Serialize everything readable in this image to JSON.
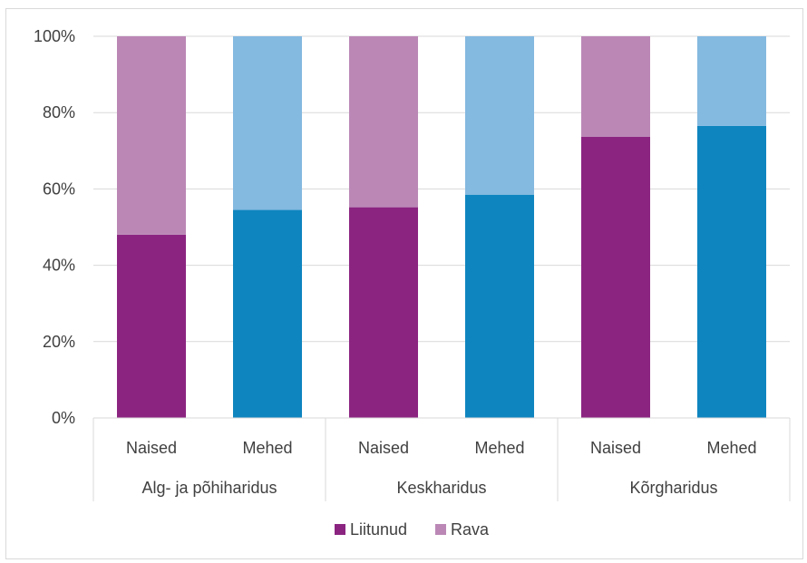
{
  "chart_data": {
    "type": "bar",
    "stacked": true,
    "percent_stacked": true,
    "ylim": [
      0,
      100
    ],
    "y_ticks": [
      "0%",
      "20%",
      "40%",
      "60%",
      "80%",
      "100%"
    ],
    "y_tick_values": [
      0,
      20,
      40,
      60,
      80,
      100
    ],
    "grid": true,
    "legend_position": "bottom",
    "bars": [
      {
        "label": "Naised",
        "group": "Alg- ja põhiharidus",
        "liitunud": 48,
        "rava": 52,
        "color_main": "#8b2481",
        "color_light": "#bb88b6"
      },
      {
        "label": "Mehed",
        "group": "Alg- ja põhiharidus",
        "liitunud": 54.5,
        "rava": 45.5,
        "color_main": "#0e85bf",
        "color_light": "#84b9e0"
      },
      {
        "label": "Naised",
        "group": "Keskharidus",
        "liitunud": 55.2,
        "rava": 44.8,
        "color_main": "#8b2481",
        "color_light": "#bb88b6"
      },
      {
        "label": "Mehed",
        "group": "Keskharidus",
        "liitunud": 58.5,
        "rava": 41.5,
        "color_main": "#0e85bf",
        "color_light": "#84b9e0"
      },
      {
        "label": "Naised",
        "group": "Kõrgharidus",
        "liitunud": 73.7,
        "rava": 26.3,
        "color_main": "#8b2481",
        "color_light": "#bb88b6"
      },
      {
        "label": "Mehed",
        "group": "Kõrgharidus",
        "liitunud": 76.5,
        "rava": 23.5,
        "color_main": "#0e85bf",
        "color_light": "#84b9e0"
      }
    ],
    "groups": [
      "Alg- ja põhiharidus",
      "Keskharidus",
      "Kõrgharidus"
    ],
    "series": [
      {
        "name": "Liitunud",
        "legend_color": "#8b2481"
      },
      {
        "name": "Rava",
        "legend_color": "#bb88b6"
      }
    ]
  }
}
